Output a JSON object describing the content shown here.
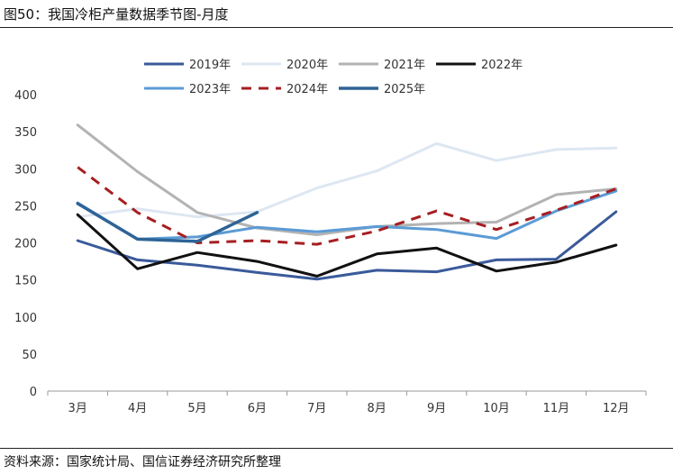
{
  "title": "图50：我国冷柜产量数据季节图-月度",
  "source": "资料来源：国家统计局、国信证券经济研究所整理",
  "chart_data": {
    "type": "line",
    "categories": [
      "3月",
      "4月",
      "5月",
      "6月",
      "7月",
      "8月",
      "9月",
      "10月",
      "11月",
      "12月"
    ],
    "ylim": [
      0,
      400
    ],
    "yticks": [
      "0",
      "50",
      "100",
      "150",
      "200",
      "250",
      "300",
      "350",
      "400"
    ],
    "grid": false,
    "legend_position": "top",
    "series": [
      {
        "name": "2019年",
        "color": "#3a5a9a",
        "dash": false,
        "width": 3,
        "values": [
          203,
          177,
          170,
          160,
          151,
          163,
          161,
          177,
          178,
          242
        ]
      },
      {
        "name": "2020年",
        "color": "#dde7f2",
        "dash": false,
        "width": 3,
        "values": [
          235,
          246,
          235,
          242,
          274,
          297,
          334,
          311,
          326,
          328
        ]
      },
      {
        "name": "2021年",
        "color": "#b3b3b3",
        "dash": false,
        "width": 3,
        "values": [
          359,
          296,
          241,
          220,
          211,
          222,
          226,
          228,
          265,
          273
        ]
      },
      {
        "name": "2022年",
        "color": "#111111",
        "dash": false,
        "width": 3,
        "values": [
          238,
          165,
          187,
          175,
          155,
          185,
          193,
          162,
          174,
          197
        ]
      },
      {
        "name": "2023年",
        "color": "#5b9bd5",
        "dash": false,
        "width": 3,
        "values": [
          254,
          205,
          208,
          221,
          215,
          222,
          218,
          206,
          243,
          270
        ]
      },
      {
        "name": "2024年",
        "color": "#a61e22",
        "dash": true,
        "width": 3,
        "values": [
          302,
          241,
          200,
          203,
          198,
          216,
          243,
          218,
          244,
          273
        ]
      },
      {
        "name": "2025年",
        "color": "#2e6496",
        "dash": false,
        "width": 3.5,
        "values": [
          253,
          205,
          202,
          241,
          null,
          null,
          null,
          null,
          null,
          null
        ]
      }
    ]
  }
}
